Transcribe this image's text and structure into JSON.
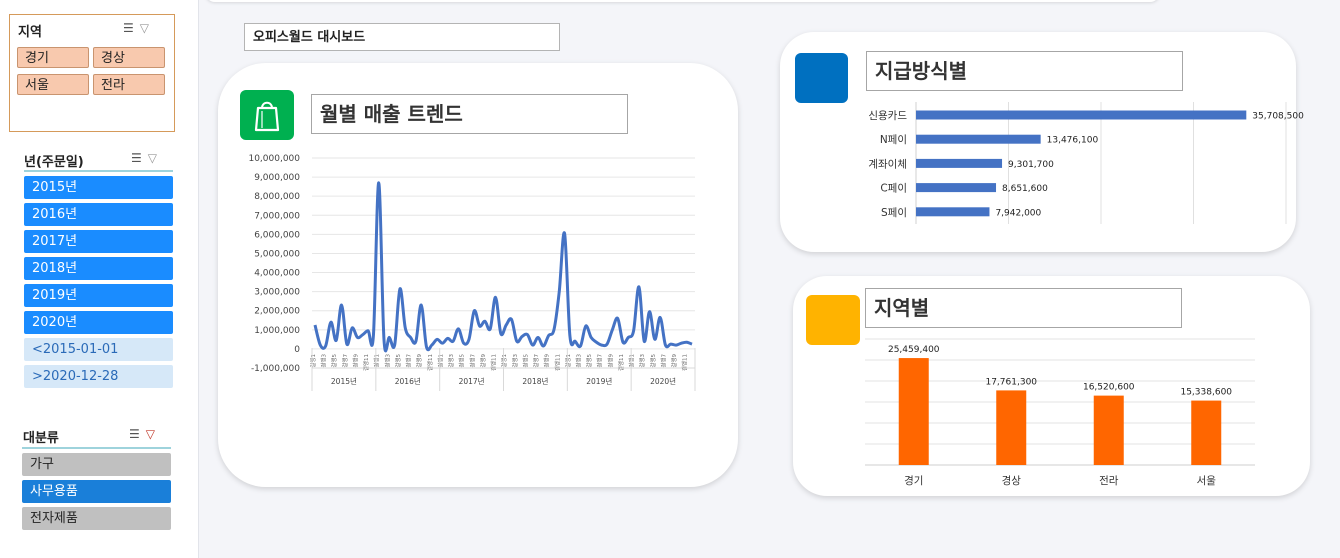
{
  "dashboard_title": "오피스월드 대시보드",
  "region_slicer": {
    "title": "지역",
    "items": [
      "경기",
      "경상",
      "서울",
      "전라"
    ]
  },
  "year_slicer": {
    "title": "년(주문일)",
    "items": [
      "2015년",
      "2016년",
      "2017년",
      "2018년",
      "2019년",
      "2020년"
    ],
    "extra_items": [
      "<2015-01-01",
      ">2020-12-28"
    ]
  },
  "category_slicer": {
    "title": "대분류",
    "items": [
      "가구",
      "사무용품",
      "전자제품"
    ],
    "selected": "사무용품"
  },
  "icons": {
    "filter_list": "multi-select-icon",
    "clear_filter": "clear-filter-icon",
    "card1": "shopping-bag-icon"
  },
  "colors": {
    "line": "#4472c4",
    "hbar": "#4472c4",
    "vbar": "#ff6600",
    "year_btn": "#1a8cff",
    "cat_selected": "#1a7fd9",
    "green_icon": "#00b050",
    "blue_icon": "#0070c0",
    "yellow_icon": "#ffb300"
  },
  "chart_data": [
    {
      "type": "line",
      "title": "월별 매출 트렌드",
      "yticks": [
        "10,000,000",
        "9,000,000",
        "8,000,000",
        "7,000,000",
        "6,000,000",
        "5,000,000",
        "4,000,000",
        "3,000,000",
        "2,000,000",
        "1,000,000",
        "0",
        "-1,000,000"
      ],
      "ylim": [
        -1000000,
        10000000
      ],
      "years": [
        "2015년",
        "2016년",
        "2017년",
        "2018년",
        "2019년",
        "2020년"
      ],
      "month_tick_labels": [
        "1",
        "3",
        "5",
        "7",
        "9",
        "11"
      ],
      "month_tick_prefix": "걸앵",
      "values": [
        1250000,
        200000,
        150000,
        1400000,
        450000,
        2300000,
        250000,
        1100000,
        600000,
        750000,
        950000,
        700000,
        8700000,
        450000,
        600000,
        200000,
        3150000,
        1100000,
        600000,
        400000,
        2300000,
        100000,
        200000,
        500000,
        300000,
        550000,
        400000,
        1050000,
        300000,
        500000,
        2000000,
        1200000,
        1450000,
        1050000,
        2700000,
        800000,
        1250000,
        1550000,
        400000,
        650000,
        750000,
        200000,
        600000,
        150000,
        700000,
        1000000,
        3000000,
        6050000,
        700000,
        400000,
        150000,
        1200000,
        600000,
        350000,
        200000,
        250000,
        1000000,
        1600000,
        350000,
        600000,
        950000,
        3250000,
        400000,
        1950000,
        500000,
        1650000,
        200000,
        250000,
        200000,
        300000,
        350000,
        250000
      ]
    },
    {
      "type": "bar",
      "orientation": "horizontal",
      "title": "지급방식별",
      "categories": [
        "신용카드",
        "N페이",
        "계좌이체",
        "C페이",
        "S페이"
      ],
      "values": [
        35708500,
        13476100,
        9301700,
        8651600,
        7942000
      ],
      "value_labels": [
        "35,708,500",
        "13,476,100",
        "9,301,700",
        "8,651,600",
        "7,942,000"
      ],
      "xlim": [
        0,
        40000000
      ]
    },
    {
      "type": "bar",
      "title": "지역별",
      "categories": [
        "경기",
        "경상",
        "전라",
        "서울"
      ],
      "values": [
        25459400,
        17761300,
        16520600,
        15338600
      ],
      "value_labels": [
        "25,459,400",
        "17,761,300",
        "16,520,600",
        "15,338,600"
      ],
      "ylim": [
        0,
        30000000
      ]
    }
  ]
}
